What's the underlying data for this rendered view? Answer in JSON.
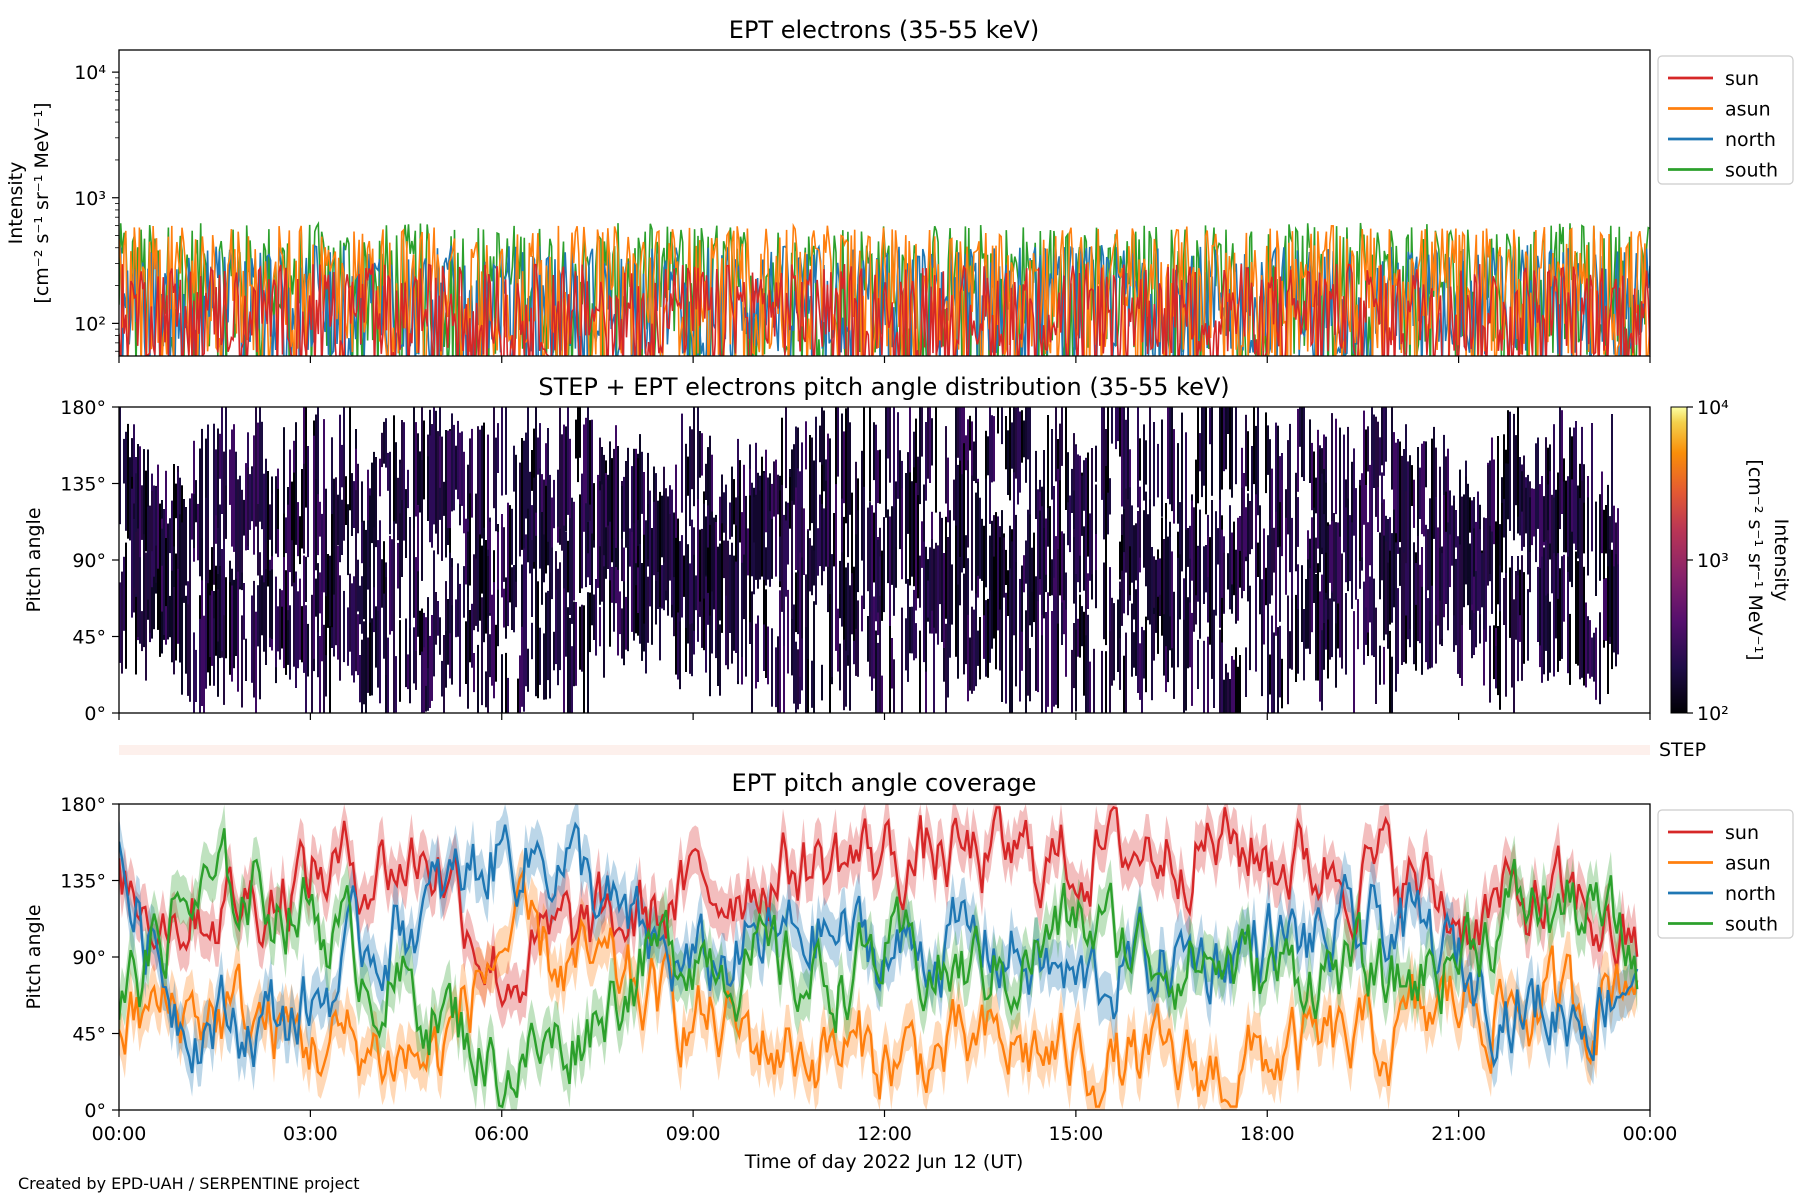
{
  "figure": {
    "credit": "Created by EPD-UAH / SERPENTINE project",
    "xlabel": "Time of day 2022 Jun 12 (UT)",
    "xticks": [
      "00:00",
      "03:00",
      "06:00",
      "09:00",
      "12:00",
      "15:00",
      "18:00",
      "21:00",
      "00:00"
    ]
  },
  "colors": {
    "sun": "#d62728",
    "asun": "#ff7f0e",
    "north": "#1f77b4",
    "south": "#2ca02c",
    "step_band": "#fdf0ec"
  },
  "chart_data": [
    {
      "id": "panel1",
      "type": "line",
      "title": "EPT electrons (35-55 keV)",
      "ylabel_lines": [
        "Intensity",
        "[cm⁻² s⁻¹ sr⁻¹ MeV⁻¹]"
      ],
      "yscale": "log",
      "ylim": [
        55,
        15000
      ],
      "yticks": [
        100,
        1000,
        10000
      ],
      "ytick_labels": [
        "10²",
        "10³",
        "10⁴"
      ],
      "xlim_hours": [
        0,
        24
      ],
      "legend": {
        "placement": "right-top",
        "entries": [
          "sun",
          "asun",
          "north",
          "south"
        ]
      },
      "series_note": "dense noisy intensities, typical range 55-600",
      "series": [
        {
          "name": "sun",
          "typical_range": [
            55,
            300
          ]
        },
        {
          "name": "asun",
          "typical_range": [
            55,
            600
          ]
        },
        {
          "name": "north",
          "typical_range": [
            55,
            420
          ]
        },
        {
          "name": "south",
          "typical_range": [
            55,
            630
          ]
        }
      ]
    },
    {
      "id": "panel2",
      "type": "heatmap",
      "title": "STEP + EPT electrons pitch angle distribution (35-55 keV)",
      "ylabel": "Pitch angle",
      "ylim": [
        0,
        180
      ],
      "yticks": [
        0,
        45,
        90,
        135,
        180
      ],
      "ytick_labels": [
        "0°",
        "45°",
        "90°",
        "135°",
        "180°"
      ],
      "xlim_hours": [
        0,
        24
      ],
      "colorbar": {
        "scale": "log",
        "range": [
          100,
          10000
        ],
        "tick_labels": [
          "10²",
          "10³",
          "10⁴"
        ],
        "label_lines": [
          "Intensity",
          "[cm⁻² s⁻¹ sr⁻¹ MeV⁻¹]"
        ],
        "colormap": "inferno"
      }
    },
    {
      "id": "step_strip",
      "type": "area",
      "label": "STEP"
    },
    {
      "id": "panel3",
      "type": "line",
      "title": "EPT pitch angle coverage",
      "ylabel": "Pitch angle",
      "ylim": [
        0,
        180
      ],
      "yticks": [
        0,
        45,
        90,
        135,
        180
      ],
      "ytick_labels": [
        "0°",
        "45°",
        "90°",
        "135°",
        "180°"
      ],
      "xlim_hours": [
        0,
        24
      ],
      "legend": {
        "placement": "right-top",
        "entries": [
          "sun",
          "asun",
          "north",
          "south"
        ]
      },
      "series": [
        {
          "name": "sun",
          "x": [
            0,
            1,
            2,
            3,
            4,
            5,
            6,
            7,
            8,
            9,
            10,
            11,
            12,
            13,
            14,
            15,
            16,
            17,
            18,
            19,
            20,
            21,
            22,
            23,
            23.8
          ],
          "y": [
            130,
            120,
            125,
            140,
            145,
            150,
            80,
            100,
            110,
            125,
            140,
            145,
            150,
            148,
            145,
            150,
            155,
            160,
            150,
            145,
            140,
            115,
            120,
            118,
            90
          ]
        },
        {
          "name": "asun",
          "x": [
            0,
            1,
            2,
            3,
            4,
            5,
            6,
            7,
            8,
            9,
            10,
            11,
            12,
            13,
            14,
            15,
            16,
            17,
            18,
            19,
            20,
            21,
            22,
            23,
            23.8
          ],
          "y": [
            50,
            60,
            55,
            40,
            35,
            30,
            100,
            85,
            70,
            55,
            40,
            35,
            30,
            32,
            35,
            30,
            25,
            20,
            30,
            35,
            40,
            65,
            60,
            62,
            90
          ]
        },
        {
          "name": "north",
          "x": [
            0,
            1,
            2,
            3,
            4,
            5,
            6,
            7,
            8,
            9,
            10,
            11,
            12,
            13,
            14,
            15,
            16,
            17,
            18,
            19,
            20,
            21,
            22,
            23,
            23.8
          ],
          "y": [
            140,
            60,
            50,
            60,
            100,
            120,
            155,
            150,
            100,
            80,
            95,
            105,
            90,
            100,
            95,
            70,
            85,
            90,
            100,
            95,
            110,
            85,
            60,
            60,
            90
          ]
        },
        {
          "name": "south",
          "x": [
            0,
            1,
            2,
            3,
            4,
            5,
            6,
            7,
            8,
            9,
            10,
            11,
            12,
            13,
            14,
            15,
            16,
            17,
            18,
            19,
            20,
            21,
            22,
            23,
            23.8
          ],
          "y": [
            60,
            120,
            130,
            120,
            80,
            60,
            25,
            40,
            80,
            100,
            85,
            75,
            90,
            80,
            85,
            110,
            95,
            90,
            80,
            85,
            70,
            95,
            120,
            118,
            90
          ]
        }
      ]
    }
  ]
}
